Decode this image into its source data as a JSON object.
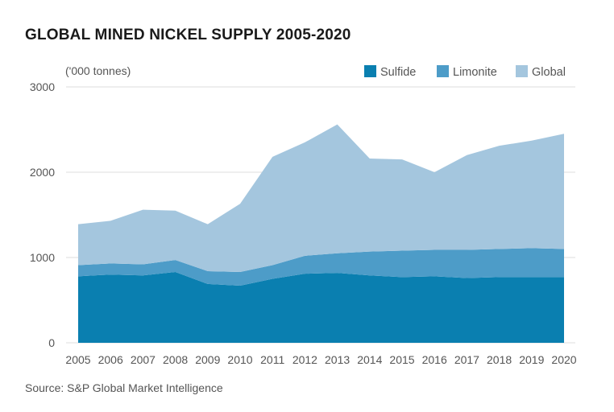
{
  "chart_data": {
    "type": "area",
    "stacked": true,
    "title": "GLOBAL MINED NICKEL SUPPLY 2005-2020",
    "unit_label": "('000 tonnes)",
    "source": "Source: S&P Global Market Intelligence",
    "categories": [
      "2005",
      "2006",
      "2007",
      "2008",
      "2009",
      "2010",
      "2011",
      "2012",
      "2013",
      "2014",
      "2015",
      "2016",
      "2017",
      "2018",
      "2019",
      "2020"
    ],
    "ylim": [
      0,
      3000
    ],
    "yticks": [
      0,
      1000,
      2000,
      3000
    ],
    "grid": true,
    "legend_position": "top-right",
    "series": [
      {
        "name": "Sulfide",
        "color": "#0a7fb0",
        "values": [
          780,
          800,
          790,
          830,
          690,
          670,
          750,
          810,
          820,
          790,
          770,
          780,
          760,
          770,
          770,
          770
        ]
      },
      {
        "name": "Limonite",
        "color": "#4d9cc8",
        "values": [
          130,
          130,
          130,
          140,
          150,
          160,
          160,
          210,
          230,
          280,
          310,
          310,
          330,
          330,
          340,
          330
        ]
      },
      {
        "name": "Global",
        "color": "#a4c6de",
        "values": [
          480,
          500,
          640,
          580,
          550,
          800,
          1270,
          1330,
          1510,
          1090,
          1070,
          910,
          1110,
          1210,
          1260,
          1350
        ]
      }
    ]
  }
}
